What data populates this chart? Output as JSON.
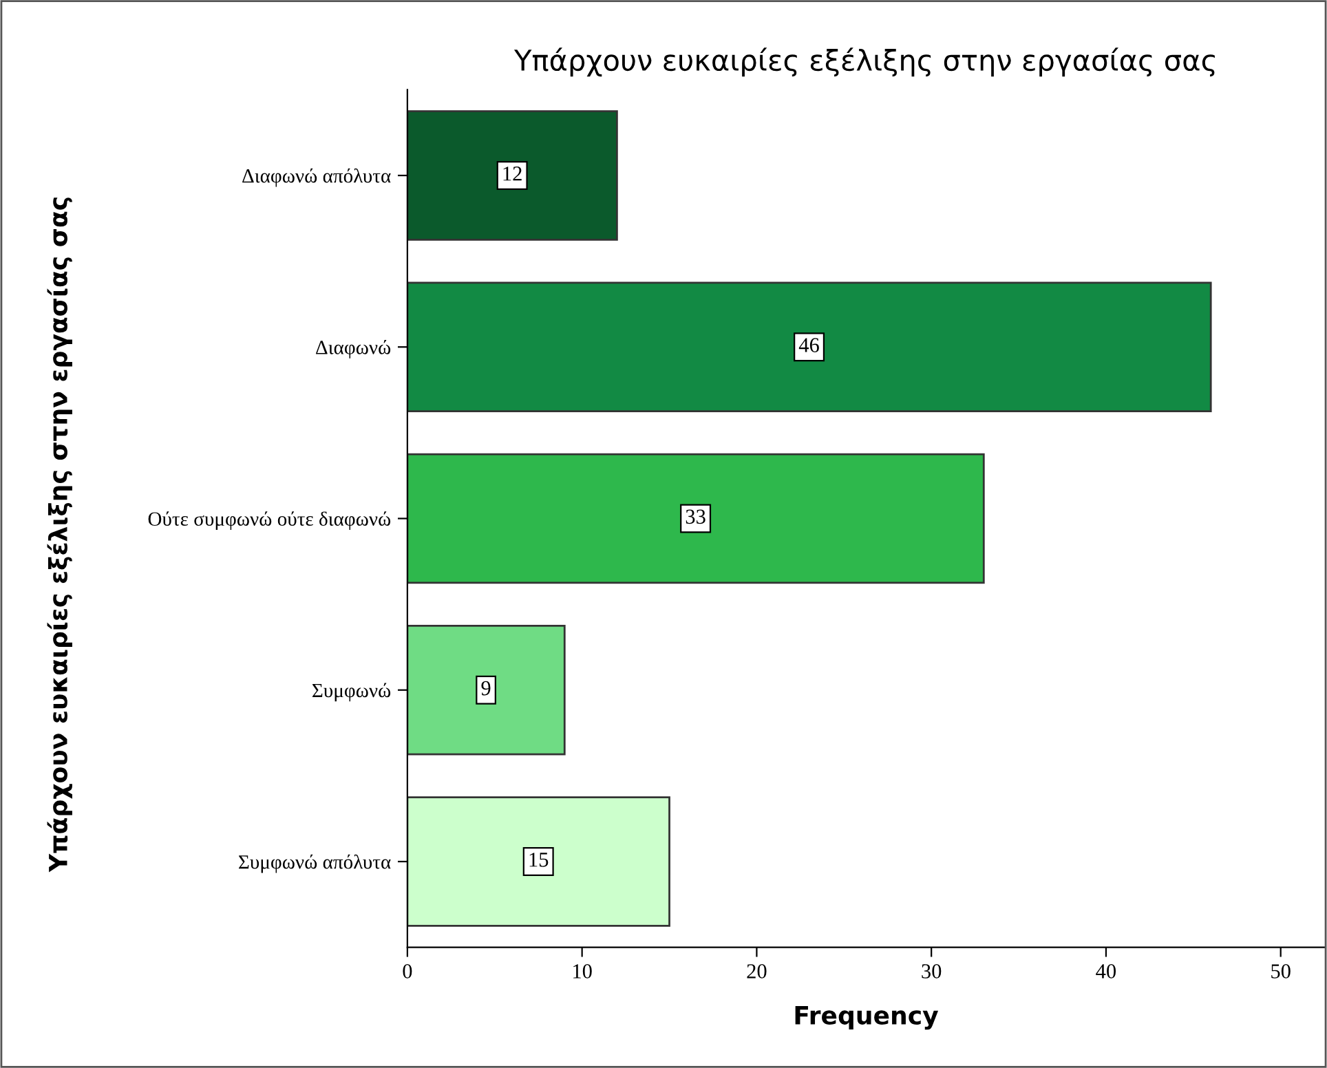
{
  "chart_data": {
    "type": "bar",
    "orientation": "horizontal",
    "title": "Υπάρχουν ευκαιρίες εξέλιξης στην εργασίας σας",
    "xlabel": "Frequency",
    "ylabel": "Υπάρχουν ευκαιρίες εξέλιξης στην εργασίας σας",
    "categories": [
      "Διαφωνώ απόλυτα",
      "Διαφωνώ",
      "Ούτε συμφωνώ ούτε διαφωνώ",
      "Συμφωνώ",
      "Συμφωνώ απόλυτα"
    ],
    "values": [
      12,
      46,
      33,
      9,
      15
    ],
    "colors": [
      "#0b5a2c",
      "#128a44",
      "#2eb84c",
      "#6fdc84",
      "#ccffcc"
    ],
    "xlim": [
      0,
      52.5
    ],
    "xticks": [
      0,
      10,
      20,
      30,
      40,
      50
    ],
    "data_labels": true,
    "grid": false,
    "legend": false
  }
}
